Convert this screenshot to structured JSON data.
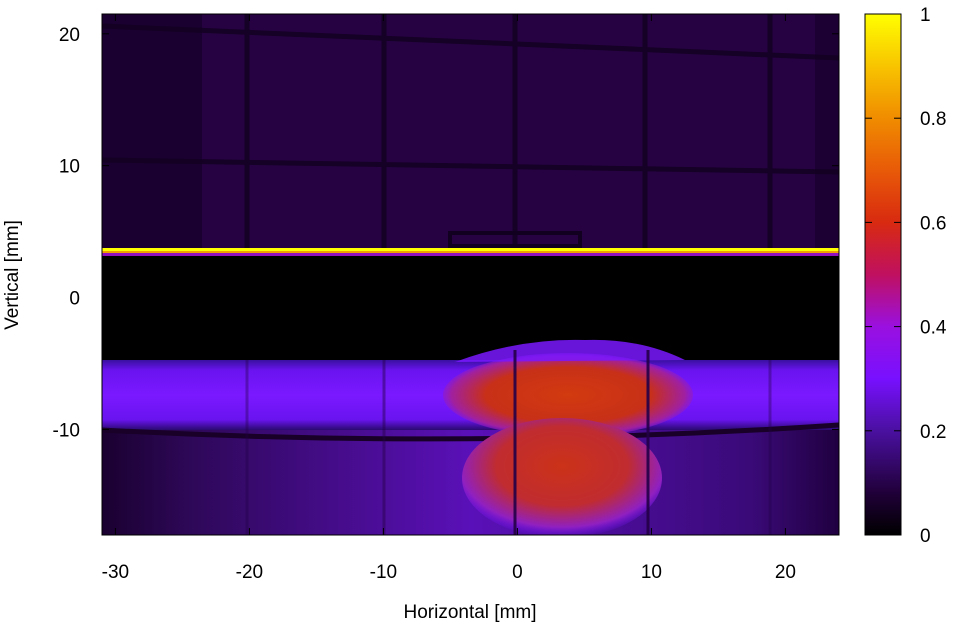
{
  "chart_data": {
    "type": "heatmap",
    "title": "",
    "xlabel": "Horizontal [mm]",
    "ylabel": "Vertical [mm]",
    "xlim": [
      -31,
      24
    ],
    "ylim": [
      -18,
      21.5
    ],
    "zlim": [
      0,
      1
    ],
    "x_ticks": [
      -30,
      -20,
      -10,
      0,
      10,
      20
    ],
    "x_tick_labels": [
      "-30",
      "-20",
      "-10",
      "0",
      "10",
      "20"
    ],
    "y_ticks": [
      -10,
      0,
      10,
      20
    ],
    "y_tick_labels": [
      "-10",
      "0",
      "10",
      "20"
    ],
    "colorbar_ticks": [
      0,
      0.2,
      0.4,
      0.6,
      0.8,
      1
    ],
    "colorbar_tick_labels": [
      "0",
      "0.2",
      "0.4",
      "0.6",
      "0.8",
      "1"
    ],
    "colormap": [
      "#000000",
      "#300050",
      "#6010c0",
      "#8a10ff",
      "#b010a0",
      "#d02020",
      "#e86010",
      "#f8c000",
      "#ffff00"
    ],
    "grid": false,
    "regions": [
      {
        "name": "upper-background",
        "x": [
          -31,
          24
        ],
        "y": [
          3.8,
          21.5
        ],
        "value": 0.1
      },
      {
        "name": "bright-edge-line",
        "x": [
          -31,
          24
        ],
        "y": [
          3.5,
          3.9
        ],
        "value": 1.0
      },
      {
        "name": "dark-shadow-band",
        "x": [
          -31,
          24
        ],
        "y": [
          -4.5,
          3.5
        ],
        "value": 0.0
      },
      {
        "name": "side-beam-band",
        "x": [
          -31,
          24
        ],
        "y": [
          -9.5,
          -4.5
        ],
        "value": 0.25
      },
      {
        "name": "central-core-upper",
        "x": [
          -4,
          12
        ],
        "y": [
          -9.5,
          -5
        ],
        "value": 0.55
      },
      {
        "name": "central-core-lower",
        "x": [
          -3,
          10
        ],
        "y": [
          -17,
          -11
        ],
        "value": 0.55
      },
      {
        "name": "lower-background",
        "x": [
          -31,
          24
        ],
        "y": [
          -18,
          -10
        ],
        "value": 0.1
      }
    ]
  }
}
